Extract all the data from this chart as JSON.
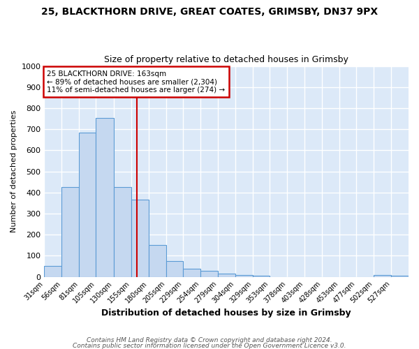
{
  "title1": "25, BLACKTHORN DRIVE, GREAT COATES, GRIMSBY, DN37 9PX",
  "title2": "Size of property relative to detached houses in Grimsby",
  "xlabel": "Distribution of detached houses by size in Grimsby",
  "ylabel": "Number of detached properties",
  "bin_labels": [
    "31sqm",
    "56sqm",
    "81sqm",
    "105sqm",
    "130sqm",
    "155sqm",
    "180sqm",
    "205sqm",
    "229sqm",
    "254sqm",
    "279sqm",
    "304sqm",
    "329sqm",
    "353sqm",
    "378sqm",
    "403sqm",
    "428sqm",
    "453sqm",
    "477sqm",
    "502sqm",
    "527sqm"
  ],
  "bin_edges": [
    31,
    56,
    81,
    105,
    130,
    155,
    180,
    205,
    229,
    254,
    279,
    304,
    329,
    353,
    378,
    403,
    428,
    453,
    477,
    502,
    527,
    552
  ],
  "counts": [
    52,
    425,
    685,
    755,
    425,
    365,
    152,
    75,
    40,
    30,
    15,
    10,
    5,
    0,
    0,
    0,
    0,
    0,
    0,
    10,
    5
  ],
  "property_size": 163,
  "bar_color": "#c5d8f0",
  "bar_edge_color": "#5b9bd5",
  "red_line_color": "#cc0000",
  "annotation_text": "25 BLACKTHORN DRIVE: 163sqm\n← 89% of detached houses are smaller (2,304)\n11% of semi-detached houses are larger (274) →",
  "annotation_box_color": "#ffffff",
  "annotation_box_edge": "#cc0000",
  "footer1": "Contains HM Land Registry data © Crown copyright and database right 2024.",
  "footer2": "Contains public sector information licensed under the Open Government Licence v3.0.",
  "ylim": [
    0,
    1000
  ],
  "yticks": [
    0,
    100,
    200,
    300,
    400,
    500,
    600,
    700,
    800,
    900,
    1000
  ],
  "bg_color": "#dce9f8",
  "grid_color": "#ffffff",
  "title1_fontsize": 10,
  "title2_fontsize": 9,
  "fig_bg": "#ffffff"
}
